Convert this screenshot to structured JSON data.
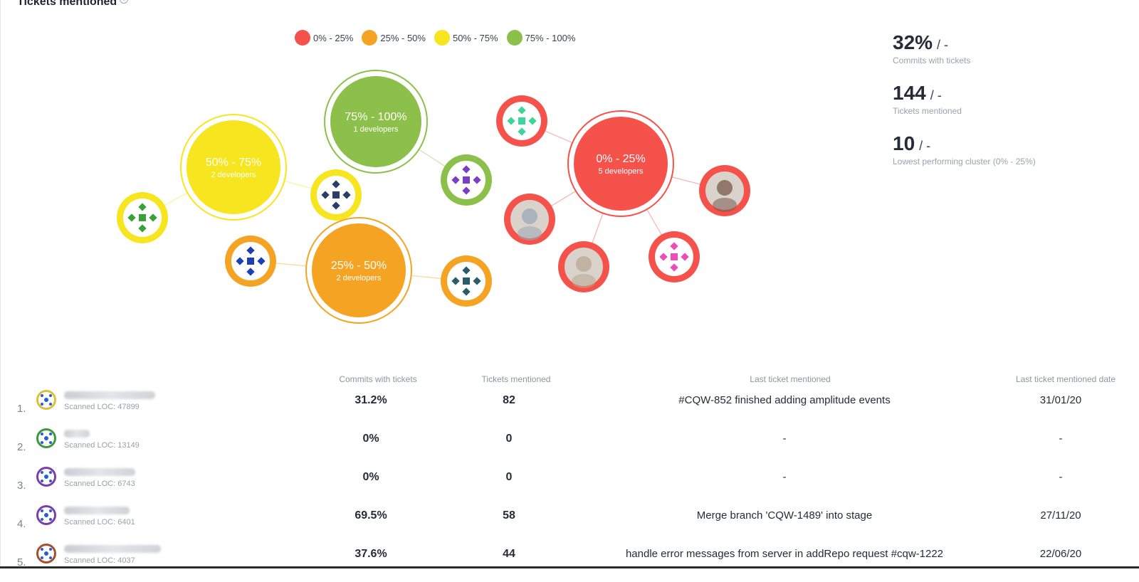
{
  "title": "Tickets mentioned",
  "info_icon": "info-icon",
  "legend": [
    {
      "label": "0% - 25%",
      "color": "#f4524a"
    },
    {
      "label": "25% - 50%",
      "color": "#f4a422"
    },
    {
      "label": "50% - 75%",
      "color": "#f6e51f"
    },
    {
      "label": "75% - 100%",
      "color": "#8cc04a"
    }
  ],
  "clusters": [
    {
      "range": "0% - 25%",
      "developers_text": "5 developers",
      "color": "#f4524a"
    },
    {
      "range": "25% - 50%",
      "developers_text": "2 developers",
      "color": "#f4a422"
    },
    {
      "range": "50% - 75%",
      "developers_text": "2 developers",
      "color": "#f6e51f"
    },
    {
      "range": "75% - 100%",
      "developers_text": "1 developers",
      "color": "#8cc04a"
    }
  ],
  "stats": [
    {
      "value": "32%",
      "sep": "/ -",
      "label": "Commits with tickets"
    },
    {
      "value": "144",
      "sep": "/ -",
      "label": "Tickets mentioned"
    },
    {
      "value": "10",
      "sep": "/ -",
      "label": "Lowest performing cluster (0% - 25%)"
    }
  ],
  "table": {
    "headers": {
      "commits": "Commits with tickets",
      "tickets": "Tickets mentioned",
      "last_ticket": "Last ticket mentioned",
      "last_date": "Last ticket mentioned date"
    },
    "rows": [
      {
        "index": "1.",
        "loc": "Scanned LOC: 47899",
        "commits": "31.2%",
        "tickets": "82",
        "last_ticket": "#CQW-852 finished adding amplitude events",
        "last_date": "31/01/20",
        "avatar_color": "#d9c23a"
      },
      {
        "index": "2.",
        "loc": "Scanned LOC: 13149",
        "commits": "0%",
        "tickets": "0",
        "last_ticket": "-",
        "last_date": "-",
        "avatar_color": "#3a9a3a"
      },
      {
        "index": "3.",
        "loc": "Scanned LOC: 6743",
        "commits": "0%",
        "tickets": "0",
        "last_ticket": "-",
        "last_date": "-",
        "avatar_color": "#7b3fa6"
      },
      {
        "index": "4.",
        "loc": "Scanned LOC: 6401",
        "commits": "69.5%",
        "tickets": "58",
        "last_ticket": "Merge branch 'CQW-1489' into stage",
        "last_date": "27/11/20",
        "avatar_color": "#7b3fa6"
      },
      {
        "index": "5.",
        "loc": "Scanned LOC: 4037",
        "commits": "37.6%",
        "tickets": "44",
        "last_ticket": "handle error messages from server in addRepo request #cqw-1222",
        "last_date": "22/06/20",
        "avatar_color": "#a0522d"
      }
    ]
  }
}
